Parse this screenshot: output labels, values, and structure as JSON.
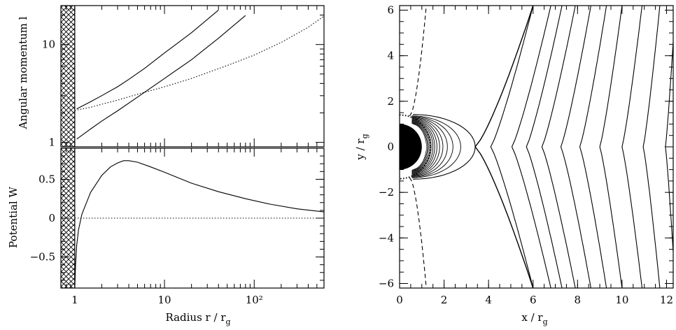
{
  "chart_data": [
    {
      "id": "angular-momentum",
      "type": "line",
      "ylabel": "Angular momentum l",
      "xscale": "log",
      "yscale": "log",
      "xlim": [
        0.7,
        600
      ],
      "ylim": [
        0.9,
        25
      ],
      "xticks": [
        {
          "v": 1,
          "label": "1"
        },
        {
          "v": 10,
          "label": "10"
        },
        {
          "v": 100,
          "label": "10²"
        }
      ],
      "yticks": [
        {
          "v": 1,
          "label": "1"
        },
        {
          "v": 10,
          "label": "10"
        }
      ],
      "excluded_region_xmax": 1,
      "series": [
        {
          "style": "solid",
          "x": [
            1.05,
            1.5,
            2,
            3,
            4,
            6,
            10,
            20,
            40
          ],
          "y": [
            2.2,
            2.6,
            3.0,
            3.7,
            4.4,
            5.7,
            8.2,
            13.2,
            22.5
          ]
        },
        {
          "style": "solid",
          "x": [
            1.05,
            1.5,
            2,
            3,
            5,
            10,
            20,
            40,
            80
          ],
          "y": [
            1.08,
            1.37,
            1.65,
            2.1,
            2.9,
            4.5,
            7.0,
            11.6,
            19.8
          ]
        },
        {
          "style": "dotted",
          "x": [
            1.0,
            1.5,
            2,
            3,
            5,
            10,
            20,
            50,
            100,
            200,
            400,
            600
          ],
          "y": [
            2.12,
            2.28,
            2.45,
            2.7,
            3.1,
            3.7,
            4.5,
            6.1,
            7.8,
            10.5,
            15.0,
            19.5
          ]
        }
      ]
    },
    {
      "id": "potential",
      "type": "line",
      "xlabel": "Radius r / r",
      "xlabel_sub": "g",
      "ylabel": "Potential W",
      "xscale": "log",
      "xlim": [
        0.7,
        600
      ],
      "ylim": [
        -0.9,
        0.9
      ],
      "xticks": [
        {
          "v": 1,
          "label": "1"
        },
        {
          "v": 10,
          "label": "10"
        },
        {
          "v": 100,
          "label": "10²"
        }
      ],
      "yticks": [
        {
          "v": -0.5,
          "label": "−0.5"
        },
        {
          "v": 0,
          "label": "0"
        },
        {
          "v": 0.5,
          "label": "0.5"
        }
      ],
      "excluded_region_xmax": 1,
      "series": [
        {
          "style": "solid",
          "x": [
            1.0,
            1.02,
            1.05,
            1.1,
            1.2,
            1.35,
            1.5,
            2,
            2.5,
            3,
            3.5,
            4,
            5,
            7,
            10,
            20,
            40,
            80,
            150,
            300,
            600
          ],
          "y": [
            -0.9,
            -0.6,
            -0.35,
            -0.15,
            0.05,
            0.2,
            0.33,
            0.55,
            0.66,
            0.71,
            0.74,
            0.74,
            0.72,
            0.66,
            0.59,
            0.45,
            0.34,
            0.25,
            0.18,
            0.12,
            0.08
          ]
        },
        {
          "style": "dotted",
          "x": [
            1.0,
            600
          ],
          "y": [
            0,
            0
          ]
        }
      ]
    },
    {
      "id": "streamlines",
      "type": "line",
      "xlabel": "x / r",
      "xlabel_sub": "g",
      "ylabel": "y / r",
      "ylabel_sub": "g",
      "xlim": [
        0,
        12.3
      ],
      "ylim": [
        -6.2,
        6.2
      ],
      "xticks": [
        {
          "v": 0,
          "label": "0"
        },
        {
          "v": 2,
          "label": "2"
        },
        {
          "v": 4,
          "label": "4"
        },
        {
          "v": 6,
          "label": "6"
        },
        {
          "v": 8,
          "label": "8"
        },
        {
          "v": 10,
          "label": "10"
        },
        {
          "v": 12,
          "label": "12"
        }
      ],
      "yticks": [
        {
          "v": -6,
          "label": "−6"
        },
        {
          "v": -4,
          "label": "−4"
        },
        {
          "v": -2,
          "label": "−2"
        },
        {
          "v": 0,
          "label": "0"
        },
        {
          "v": 2,
          "label": "2"
        },
        {
          "v": 4,
          "label": "4"
        },
        {
          "v": 6,
          "label": "6"
        }
      ],
      "black_hole_radius": 1,
      "outer_streamlines": [
        {
          "x_mid": 4.1,
          "x_end": 6.0
        },
        {
          "x_mid": 5.05,
          "x_end": 6.8
        },
        {
          "x_mid": 5.7,
          "x_end": 7.3
        },
        {
          "x_mid": 6.4,
          "x_end": 7.9
        },
        {
          "x_mid": 7.25,
          "x_end": 8.6
        },
        {
          "x_mid": 8.1,
          "x_end": 9.3
        },
        {
          "x_mid": 9.0,
          "x_end": 10.0
        },
        {
          "x_mid": 10.0,
          "x_end": 10.9
        },
        {
          "x_mid": 10.95,
          "x_end": 11.7
        },
        {
          "x_mid": 11.95,
          "x_end": 12.4
        }
      ],
      "separatrix": {
        "x_cross": 3.4
      },
      "inner_loops": [
        {
          "xmax": 1.2,
          "ymax": 1.0
        },
        {
          "xmax": 1.25,
          "ymax": 1.03
        },
        {
          "xmax": 1.3,
          "ymax": 1.06
        },
        {
          "xmax": 1.36,
          "ymax": 1.09
        },
        {
          "xmax": 1.42,
          "ymax": 1.12
        },
        {
          "xmax": 1.5,
          "ymax": 1.15
        },
        {
          "xmax": 1.58,
          "ymax": 1.18
        },
        {
          "xmax": 1.68,
          "ymax": 1.21
        },
        {
          "xmax": 1.8,
          "ymax": 1.24
        },
        {
          "xmax": 1.95,
          "ymax": 1.27
        },
        {
          "xmax": 2.15,
          "ymax": 1.3
        },
        {
          "xmax": 2.4,
          "ymax": 1.33
        },
        {
          "xmax": 2.75,
          "ymax": 1.36
        }
      ],
      "dashed_curve": {
        "x_top": 1.2,
        "x_near": 0.45,
        "y_near": 1.35
      },
      "dotted_circle_radius": 1.4
    }
  ]
}
